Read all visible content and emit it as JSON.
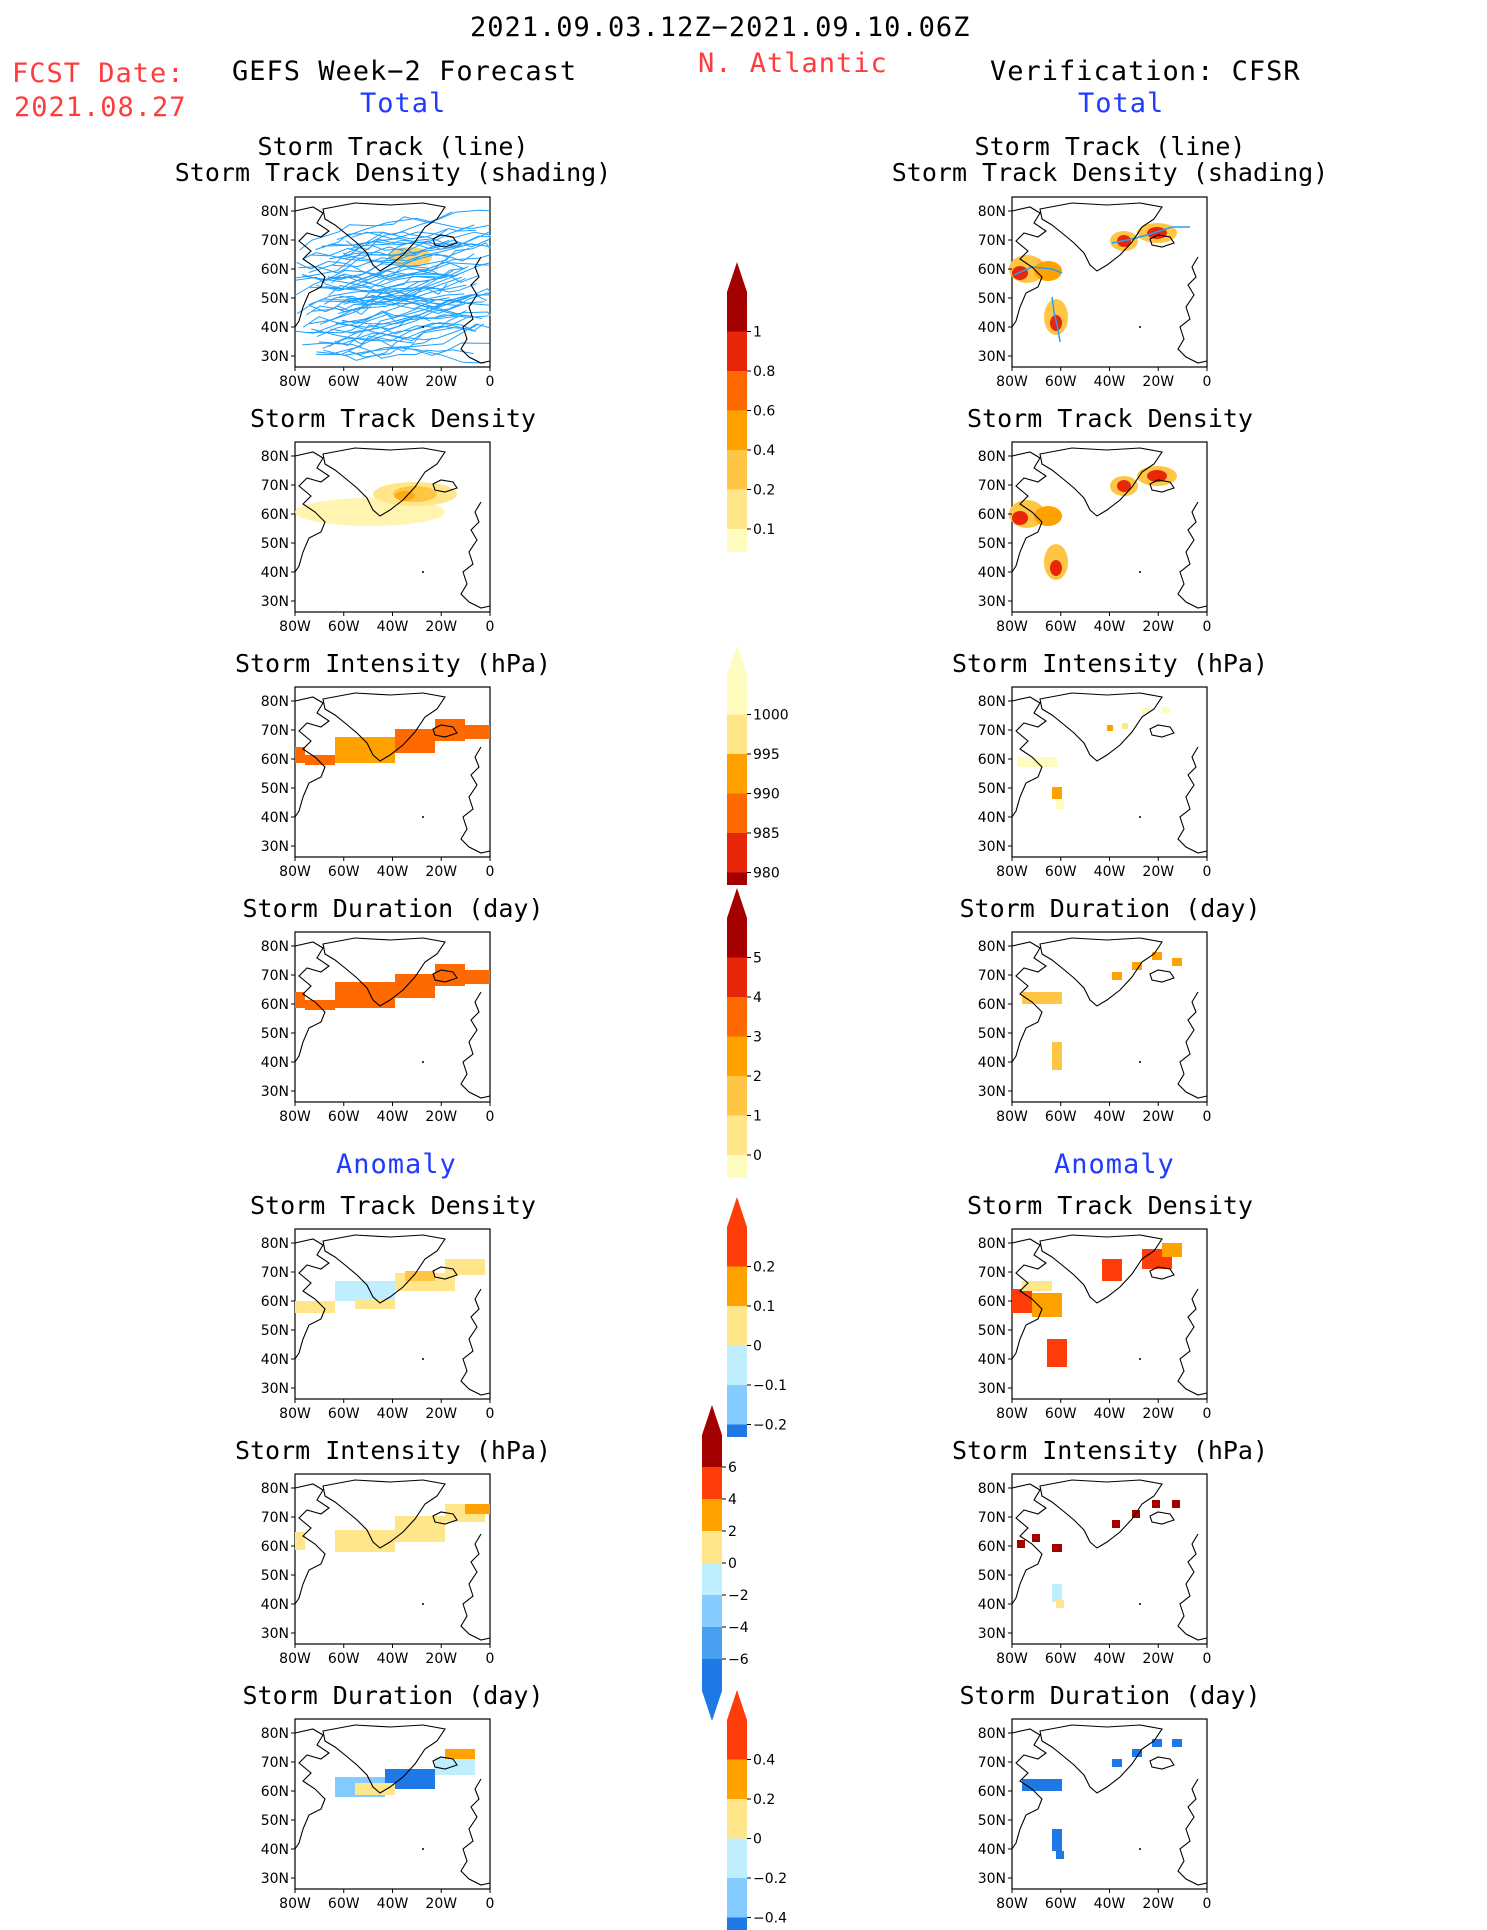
{
  "header": {
    "date_range": "2021.09.03.12Z−2021.09.10.06Z",
    "region": "N. Atlantic",
    "fcst_label": "FCST Date:",
    "fcst_date": "2021.08.27",
    "left_title": "GEFS Week−2 Forecast",
    "right_title": "Verification: CFSR",
    "total_label": "Total",
    "anomaly_label": "Anomaly"
  },
  "axes": {
    "lat_labels": [
      "80N",
      "70N",
      "60N",
      "50N",
      "40N",
      "30N"
    ],
    "lon_labels": [
      "80W",
      "60W",
      "40W",
      "20W",
      "0"
    ]
  },
  "panel_titles": {
    "track_line": "Storm Track (line)",
    "track_density_shading": "Storm Track Density (shading)",
    "track_density": "Storm Track Density",
    "intensity": "Storm Intensity (hPa)",
    "duration": "Storm Duration (day)"
  },
  "colorbars": {
    "density_total": {
      "labels": [
        "1",
        "0.8",
        "0.6",
        "0.4",
        "0.2",
        "0.1"
      ],
      "colors": [
        "#a50000",
        "#e8260a",
        "#ff6a00",
        "#ffa200",
        "#ffc545",
        "#ffe68a",
        "#fffcbf"
      ]
    },
    "intensity_total": {
      "labels": [
        "1000",
        "995",
        "990",
        "985",
        "980"
      ],
      "colors": [
        "#fffcbf",
        "#ffe68a",
        "#ffa200",
        "#ff6a00",
        "#e8260a",
        "#a50000"
      ]
    },
    "duration_total": {
      "labels": [
        "5",
        "4",
        "3",
        "2",
        "1",
        "0"
      ],
      "colors": [
        "#a50000",
        "#e8260a",
        "#ff6a00",
        "#ffa200",
        "#ffc545",
        "#ffe68a",
        "#fffcbf"
      ]
    },
    "density_anom": {
      "labels": [
        "0.2",
        "0.1",
        "0",
        "−0.1",
        "−0.2"
      ],
      "colors": [
        "#ff3d0a",
        "#ffa200",
        "#ffe68a",
        "#bfefff",
        "#84ccff",
        "#1e78e6"
      ]
    },
    "intensity_anom": {
      "labels": [
        "6",
        "4",
        "2",
        "0",
        "−2",
        "−4",
        "−6"
      ],
      "colors": [
        "#a50000",
        "#ff3d0a",
        "#ffa200",
        "#ffe68a",
        "#bfefff",
        "#84ccff",
        "#4aa0f0",
        "#1e78e6"
      ]
    },
    "duration_anom": {
      "labels": [
        "0.4",
        "0.2",
        "0",
        "−0.2",
        "−0.4"
      ],
      "colors": [
        "#ff3d0a",
        "#ffa200",
        "#ffe68a",
        "#bfefff",
        "#84ccff",
        "#1e78e6"
      ]
    }
  }
}
